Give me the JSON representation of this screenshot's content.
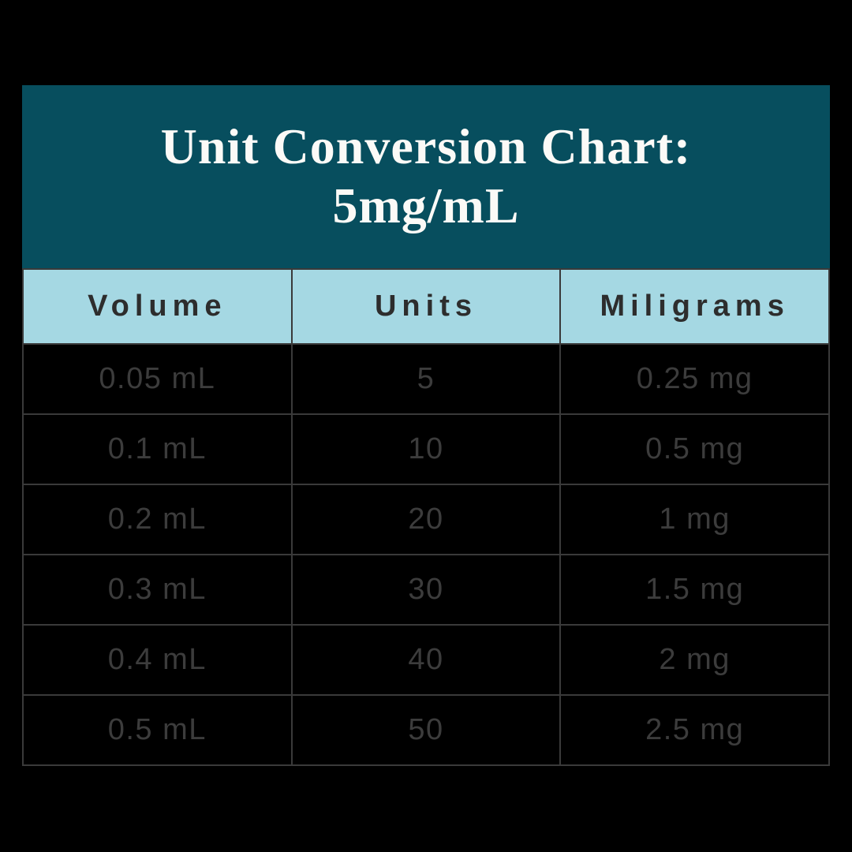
{
  "card": {
    "title_line1": "Unit Conversion Chart:",
    "title_line2": "5mg/mL",
    "title_bg": "#074E5E",
    "title_color": "#FBFAF7"
  },
  "table": {
    "header_bg": "#A5D8E3",
    "header_text_color": "#2D2D2D",
    "cell_text_color": "#3C3C3C",
    "border_color": "#3A3A3A",
    "columns": [
      "Volume",
      "Units",
      "Miligrams"
    ],
    "rows": [
      {
        "volume": "0.05 mL",
        "units": "5",
        "milligrams": "0.25 mg"
      },
      {
        "volume": "0.1 mL",
        "units": "10",
        "milligrams": "0.5 mg"
      },
      {
        "volume": "0.2 mL",
        "units": "20",
        "milligrams": "1 mg"
      },
      {
        "volume": "0.3 mL",
        "units": "30",
        "milligrams": "1.5 mg"
      },
      {
        "volume": "0.4 mL",
        "units": "40",
        "milligrams": "2 mg"
      },
      {
        "volume": "0.5 mL",
        "units": "50",
        "milligrams": "2.5 mg"
      }
    ]
  },
  "chart_data": {
    "type": "table",
    "title": "Unit Conversion Chart: 5mg/mL",
    "columns": [
      "Volume",
      "Units",
      "Miligrams"
    ],
    "rows": [
      [
        "0.05 mL",
        "5",
        "0.25 mg"
      ],
      [
        "0.1 mL",
        "10",
        "0.5 mg"
      ],
      [
        "0.2 mL",
        "20",
        "1 mg"
      ],
      [
        "0.3 mL",
        "30",
        "1.5 mg"
      ],
      [
        "0.4 mL",
        "40",
        "2 mg"
      ],
      [
        "0.5 mL",
        "50",
        "2.5 mg"
      ]
    ]
  }
}
